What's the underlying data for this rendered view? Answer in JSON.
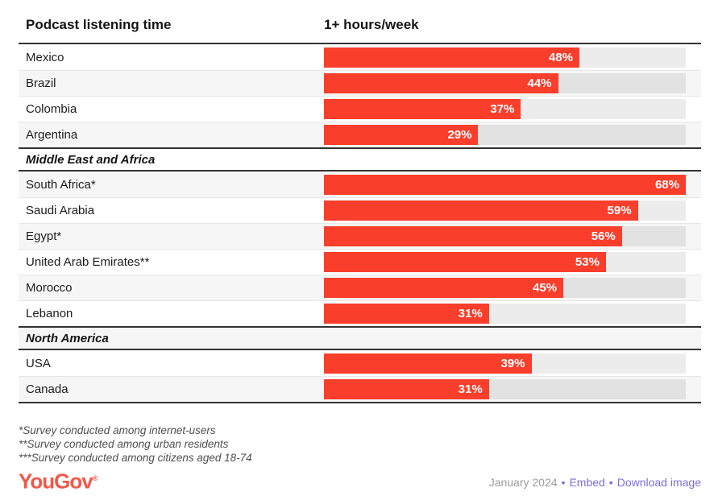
{
  "chart_data": {
    "type": "bar",
    "orientation": "horizontal",
    "title": "Podcast listening time",
    "value_header": "1+ hours/week",
    "unit": "%",
    "scale_max": 68,
    "sections": [
      {
        "name": null,
        "rows": [
          {
            "label": "Mexico",
            "value": 48
          },
          {
            "label": "Brazil",
            "value": 44
          },
          {
            "label": "Colombia",
            "value": 37
          },
          {
            "label": "Argentina",
            "value": 29
          }
        ]
      },
      {
        "name": "Middle East and Africa",
        "rows": [
          {
            "label": "South Africa*",
            "value": 68
          },
          {
            "label": "Saudi Arabia",
            "value": 59
          },
          {
            "label": "Egypt*",
            "value": 56
          },
          {
            "label": "United Arab Emirates**",
            "value": 53
          },
          {
            "label": "Morocco",
            "value": 45
          },
          {
            "label": "Lebanon",
            "value": 31
          }
        ]
      },
      {
        "name": "North America",
        "rows": [
          {
            "label": "USA",
            "value": 39
          },
          {
            "label": "Canada",
            "value": 31
          }
        ]
      }
    ]
  },
  "footnotes": [
    "*Survey conducted among internet-users",
    "**Survey conducted among urban residents",
    "***Survey conducted among citizens aged 18-74"
  ],
  "footer": {
    "brand": "YouGov",
    "trademark": "®",
    "date": "January 2024",
    "separator": "•",
    "links": [
      "Embed",
      "Download image"
    ]
  },
  "colors": {
    "bar": "#FA3E2C",
    "bar_label": "#FFFFFF",
    "track_light": "#ECECEC",
    "track_dark": "#E2E2E2",
    "row_alt_bg": "#F6F6F6",
    "divider": "#E6E6E6",
    "border_dark": "#333333",
    "brand": "#F25849",
    "link": "#7A6EDC",
    "date_text": "#9C9C9C"
  }
}
